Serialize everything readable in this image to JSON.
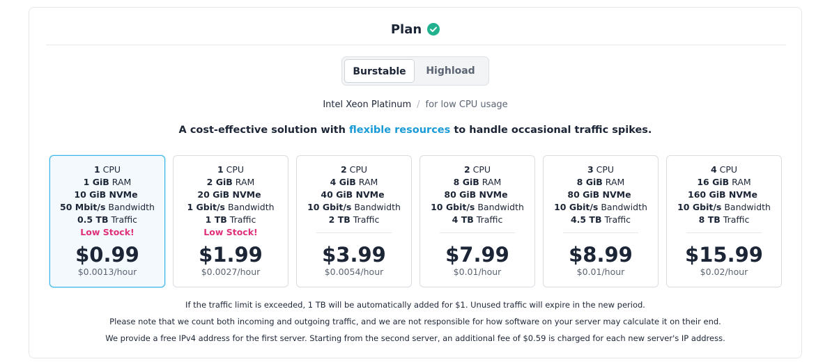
{
  "header": {
    "title": "Plan"
  },
  "tabs": [
    "Burstable",
    "Highload"
  ],
  "processor": {
    "name": "Intel Xeon Platinum",
    "separator": "/",
    "usage": "for low CPU usage"
  },
  "tagline": {
    "before": "A cost-effective solution with",
    "link": "flexible resources",
    "after": "to handle occasional traffic spikes."
  },
  "plans": [
    {
      "specs": [
        {
          "value": "1",
          "unit": "CPU"
        },
        {
          "value": "1 GiB",
          "unit": "RAM"
        },
        {
          "value": "10 GiB NVMe",
          "unit": ""
        },
        {
          "value": "50 Mbit/s",
          "unit": "Bandwidth"
        },
        {
          "value": "0.5 TB",
          "unit": "Traffic"
        }
      ],
      "stock": "Low Stock!",
      "price": "$0.99",
      "hourly": "$0.0013/hour"
    },
    {
      "specs": [
        {
          "value": "1",
          "unit": "CPU"
        },
        {
          "value": "2 GiB",
          "unit": "RAM"
        },
        {
          "value": "20 GiB NVMe",
          "unit": ""
        },
        {
          "value": "1 Gbit/s",
          "unit": "Bandwidth"
        },
        {
          "value": "1 TB",
          "unit": "Traffic"
        }
      ],
      "stock": "Low Stock!",
      "price": "$1.99",
      "hourly": "$0.0027/hour"
    },
    {
      "specs": [
        {
          "value": "2",
          "unit": "CPU"
        },
        {
          "value": "4 GiB",
          "unit": "RAM"
        },
        {
          "value": "40 GiB NVMe",
          "unit": ""
        },
        {
          "value": "10 Gbit/s",
          "unit": "Bandwidth"
        },
        {
          "value": "2 TB",
          "unit": "Traffic"
        }
      ],
      "price": "$3.99",
      "hourly": "$0.0054/hour"
    },
    {
      "specs": [
        {
          "value": "2",
          "unit": "CPU"
        },
        {
          "value": "8 GiB",
          "unit": "RAM"
        },
        {
          "value": "80 GiB NVMe",
          "unit": ""
        },
        {
          "value": "10 Gbit/s",
          "unit": "Bandwidth"
        },
        {
          "value": "4 TB",
          "unit": "Traffic"
        }
      ],
      "price": "$7.99",
      "hourly": "$0.01/hour"
    },
    {
      "specs": [
        {
          "value": "3",
          "unit": "CPU"
        },
        {
          "value": "8 GiB",
          "unit": "RAM"
        },
        {
          "value": "80 GiB NVMe",
          "unit": ""
        },
        {
          "value": "10 Gbit/s",
          "unit": "Bandwidth"
        },
        {
          "value": "4.5 TB",
          "unit": "Traffic"
        }
      ],
      "price": "$8.99",
      "hourly": "$0.01/hour"
    },
    {
      "specs": [
        {
          "value": "4",
          "unit": "CPU"
        },
        {
          "value": "16 GiB",
          "unit": "RAM"
        },
        {
          "value": "160 GiB NVMe",
          "unit": ""
        },
        {
          "value": "10 Gbit/s",
          "unit": "Bandwidth"
        },
        {
          "value": "8 TB",
          "unit": "Traffic"
        }
      ],
      "price": "$15.99",
      "hourly": "$0.02/hour"
    }
  ],
  "notes": [
    "If the traffic limit is exceeded, 1 TB will be automatically added for $1. Unused traffic will expire in the new period.",
    "Please note that we count both incoming and outgoing traffic, and we are not responsible for how software on your server may calculate it on their end.",
    "We provide a free IPv4 address for the first server. Starting from the second server, an additional fee of $0.59 is charged for each new server's IP address."
  ]
}
